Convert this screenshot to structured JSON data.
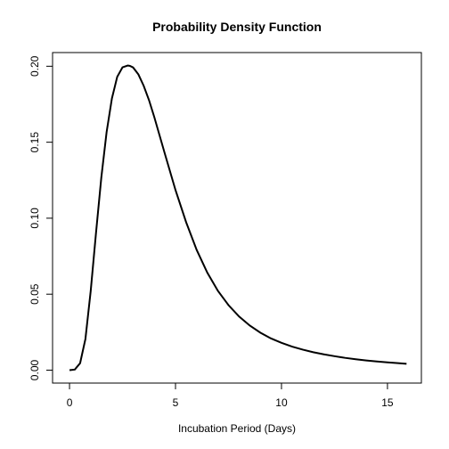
{
  "chart_data": {
    "type": "line",
    "title": "Probability Density Function",
    "xlabel": "Incubation Period (Days)",
    "ylabel": "",
    "xlim": [
      -0.8,
      16.6
    ],
    "ylim": [
      -0.0085,
      0.209
    ],
    "xticks": [
      0,
      5,
      10,
      15
    ],
    "xtick_labels": [
      "0",
      "5",
      "10",
      "15"
    ],
    "yticks": [
      0.0,
      0.05,
      0.1,
      0.15,
      0.2
    ],
    "ytick_labels": [
      "0.00",
      "0.05",
      "0.10",
      "0.15",
      "0.20"
    ],
    "grid": false,
    "legend": "none",
    "line_color": "#000000",
    "series": [
      {
        "x": [
          0.0,
          0.25,
          0.5,
          0.75,
          1.0,
          1.25,
          1.5,
          1.75,
          2.0,
          2.25,
          2.5,
          2.75,
          2.85,
          3.0,
          3.25,
          3.5,
          3.75,
          4.0,
          4.5,
          5.0,
          5.5,
          6.0,
          6.5,
          7.0,
          7.5,
          8.0,
          8.5,
          9.0,
          9.5,
          10.0,
          10.5,
          11.0,
          11.5,
          12.0,
          12.5,
          13.0,
          13.5,
          14.0,
          14.5,
          15.0,
          15.5,
          15.9
        ],
        "y": [
          0.0,
          0.0004,
          0.0046,
          0.0205,
          0.0522,
          0.0904,
          0.1267,
          0.1567,
          0.1788,
          0.193,
          0.1993,
          0.2005,
          0.2002,
          0.1992,
          0.1946,
          0.1871,
          0.1777,
          0.1665,
          0.1423,
          0.1185,
          0.0974,
          0.0791,
          0.0642,
          0.0522,
          0.0428,
          0.0353,
          0.0294,
          0.0247,
          0.0209,
          0.018,
          0.0155,
          0.0135,
          0.0118,
          0.0104,
          0.0092,
          0.0081,
          0.0072,
          0.0064,
          0.0057,
          0.0051,
          0.0046,
          0.0042
        ]
      }
    ]
  }
}
